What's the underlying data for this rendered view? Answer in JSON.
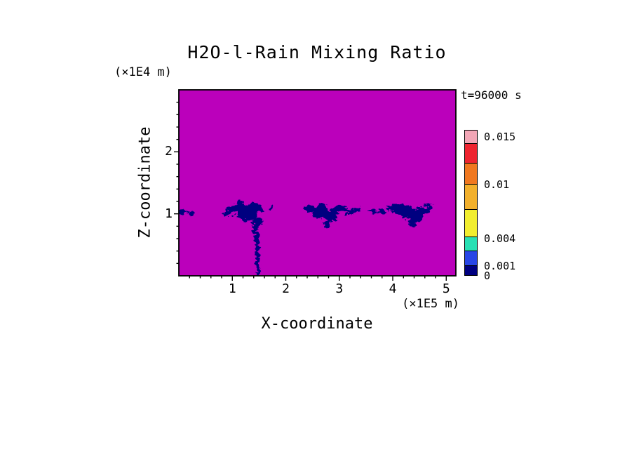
{
  "chart_data": {
    "type": "heatmap",
    "title": "H2O-l-Rain Mixing Ratio",
    "annotation": "t=96000 s",
    "xlabel": "X-coordinate",
    "x_unit": "(×1E5 m)",
    "ylabel": "Z-coordinate",
    "y_unit": "(×1E4 m)",
    "xlim": [
      0,
      5.18
    ],
    "ylim": [
      0,
      3.0
    ],
    "xticks": [
      1,
      2,
      3,
      4,
      5
    ],
    "yticks": [
      1,
      2
    ],
    "x_minor_step": 0.2,
    "y_minor_step": 0.2,
    "grid": false,
    "note": "Uniform magenta field (below lowest contour level) with ragged dark navy patches of rain mixing ratio concentrated near z = 1 (×1E4 m), plus a narrow fall streak reaching the surface near x = 1.45 (×1E5 m).",
    "field": {
      "background_color": "#BB00BB",
      "feature_color": "#000080"
    },
    "features": {
      "blobs": [
        {
          "x": 0.06,
          "z": 1.04,
          "rx": 0.12,
          "rz": 0.035
        },
        {
          "x": 0.22,
          "z": 1.0,
          "rx": 0.07,
          "rz": 0.028
        },
        {
          "x": 0.88,
          "z": 1.01,
          "rx": 0.07,
          "rz": 0.04
        },
        {
          "x": 1.02,
          "z": 1.06,
          "rx": 0.12,
          "rz": 0.06
        },
        {
          "x": 1.16,
          "z": 1.1,
          "rx": 0.14,
          "rz": 0.09
        },
        {
          "x": 1.3,
          "z": 1.02,
          "rx": 0.19,
          "rz": 0.13
        },
        {
          "x": 1.45,
          "z": 1.1,
          "rx": 0.11,
          "rz": 0.08
        },
        {
          "x": 1.5,
          "z": 0.9,
          "rx": 0.06,
          "rz": 0.07
        },
        {
          "x": 1.74,
          "z": 1.12,
          "rx": 0.035,
          "rz": 0.03
        },
        {
          "x": 2.46,
          "z": 1.08,
          "rx": 0.12,
          "rz": 0.06
        },
        {
          "x": 2.66,
          "z": 1.04,
          "rx": 0.17,
          "rz": 0.11
        },
        {
          "x": 2.84,
          "z": 0.97,
          "rx": 0.13,
          "rz": 0.1
        },
        {
          "x": 3.0,
          "z": 1.08,
          "rx": 0.13,
          "rz": 0.06
        },
        {
          "x": 3.18,
          "z": 1.04,
          "rx": 0.1,
          "rz": 0.05
        },
        {
          "x": 3.34,
          "z": 1.07,
          "rx": 0.08,
          "rz": 0.04
        },
        {
          "x": 2.77,
          "z": 0.84,
          "rx": 0.055,
          "rz": 0.055
        },
        {
          "x": 3.62,
          "z": 1.06,
          "rx": 0.08,
          "rz": 0.04
        },
        {
          "x": 3.8,
          "z": 1.03,
          "rx": 0.08,
          "rz": 0.045
        },
        {
          "x": 4.0,
          "z": 1.1,
          "rx": 0.11,
          "rz": 0.055
        },
        {
          "x": 4.2,
          "z": 1.05,
          "rx": 0.17,
          "rz": 0.1
        },
        {
          "x": 4.4,
          "z": 0.97,
          "rx": 0.15,
          "rz": 0.11
        },
        {
          "x": 4.57,
          "z": 1.06,
          "rx": 0.11,
          "rz": 0.065
        },
        {
          "x": 4.7,
          "z": 1.1,
          "rx": 0.06,
          "rz": 0.035
        },
        {
          "x": 4.37,
          "z": 0.82,
          "rx": 0.06,
          "rz": 0.055
        }
      ],
      "streaks": [
        {
          "x1": 1.44,
          "z1": 0.96,
          "x2": 1.49,
          "z2": 0.0,
          "w": 5
        },
        {
          "x1": 1.4,
          "z1": 0.92,
          "x2": 1.43,
          "z2": 0.52,
          "w": 2.5
        }
      ]
    },
    "colorbar": {
      "segments": [
        {
          "color": "#F2A6B6",
          "h": 0.09
        },
        {
          "color": "#EE2430",
          "h": 0.135
        },
        {
          "color": "#F07820",
          "h": 0.145
        },
        {
          "color": "#F2B02C",
          "h": 0.18
        },
        {
          "color": "#F2EE30",
          "h": 0.19
        },
        {
          "color": "#28E0B4",
          "h": 0.095
        },
        {
          "color": "#2846E6",
          "h": 0.1
        },
        {
          "color": "#000080",
          "h": 0.065
        }
      ],
      "labels": [
        {
          "text": "0.015",
          "pos": 0.05
        },
        {
          "text": "0.01",
          "pos": 0.375
        },
        {
          "text": "0.004",
          "pos": 0.745
        },
        {
          "text": "0.001",
          "pos": 0.935
        },
        {
          "text": "0",
          "pos": 1.0
        }
      ]
    }
  }
}
